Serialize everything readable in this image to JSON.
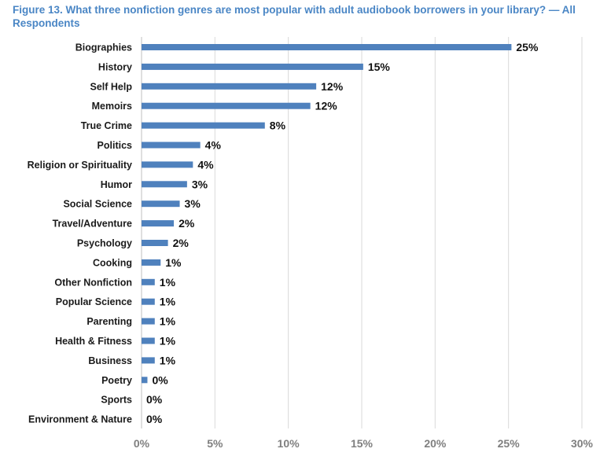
{
  "chart_data": {
    "type": "bar",
    "orientation": "horizontal",
    "title": "Figure 13. What three nonfiction genres are most popular with adult audiobook borrowers in your library? — All Respondents",
    "categories": [
      "Biographies",
      "History",
      "Self Help",
      "Memoirs",
      "True Crime",
      "Politics",
      "Religion or Spirituality",
      "Humor",
      "Social Science",
      "Travel/Adventure",
      "Psychology",
      "Cooking",
      "Other Nonfiction",
      "Popular Science",
      "Parenting",
      "Health & Fitness",
      "Business",
      "Poetry",
      "Sports",
      "Environment & Nature"
    ],
    "values": [
      25.2,
      15.1,
      11.9,
      11.5,
      8.4,
      4.0,
      3.5,
      3.1,
      2.6,
      2.2,
      1.8,
      1.3,
      0.9,
      0.9,
      0.9,
      0.9,
      0.9,
      0.4,
      0.0,
      0.0
    ],
    "data_labels": [
      "25%",
      "15%",
      "12%",
      "12%",
      "8%",
      "4%",
      "4%",
      "3%",
      "3%",
      "2%",
      "2%",
      "1%",
      "1%",
      "1%",
      "1%",
      "1%",
      "1%",
      "0%",
      "0%",
      "0%"
    ],
    "xlim": [
      0,
      30
    ],
    "xticks": [
      0,
      5,
      10,
      15,
      20,
      25,
      30
    ],
    "xtick_labels": [
      "0%",
      "5%",
      "10%",
      "15%",
      "20%",
      "25%",
      "30%"
    ],
    "xlabel": "",
    "ylabel": "",
    "grid": "vertical",
    "legend": "none",
    "bar_color": "#4f81bd",
    "grid_color": "#d9d9d9"
  }
}
